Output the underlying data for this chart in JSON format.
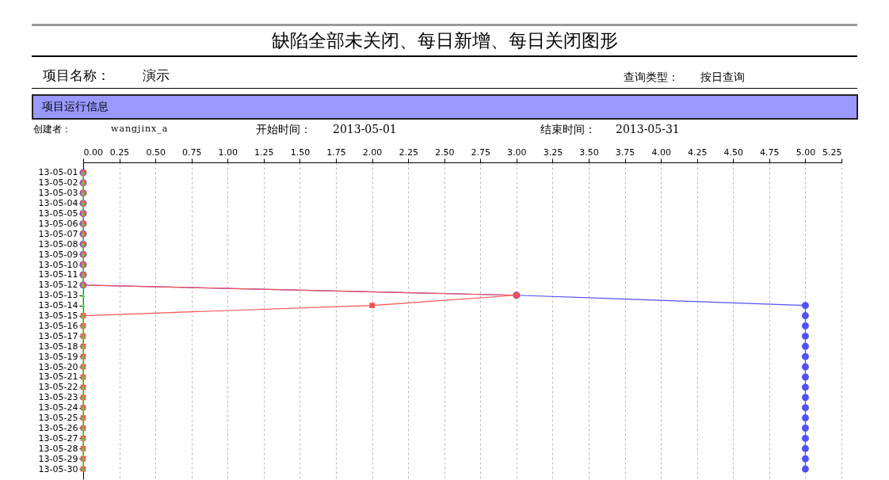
{
  "chart_data": {
    "type": "line",
    "orientation": "horizontal",
    "title": "缺陷全部未关闭、每日新增、每日关闭图形",
    "annotations": [
      "项目名称：",
      "演示",
      "查询类型：",
      "按日查询",
      "项目运行信息",
      "创建者：",
      "wangjinx_a",
      "开始时间：",
      "2013-05-01",
      "结束时间：",
      "2013-05-31"
    ],
    "categories": [
      "13-05-01",
      "13-05-02",
      "13-05-03",
      "13-05-04",
      "13-05-05",
      "13-05-06",
      "13-05-07",
      "13-05-08",
      "13-05-09",
      "13-05-10",
      "13-05-11",
      "13-05-12",
      "13-05-13",
      "13-05-14",
      "13-05-15",
      "13-05-16",
      "13-05-17",
      "13-05-18",
      "13-05-19",
      "13-05-20",
      "13-05-21",
      "13-05-22",
      "13-05-23",
      "13-05-24",
      "13-05-25",
      "13-05-26",
      "13-05-27",
      "13-05-28",
      "13-05-29",
      "13-05-30"
    ],
    "series": [
      {
        "color": "#40e040",
        "marker": "triangle",
        "values": [
          0,
          0,
          0,
          0,
          0,
          0,
          0,
          0,
          0,
          0,
          0,
          0,
          0,
          0,
          0,
          0,
          0,
          0,
          0,
          0,
          0,
          0,
          0,
          0,
          0,
          0,
          0,
          0,
          0,
          0
        ]
      },
      {
        "color": "#ff5050",
        "marker": "square",
        "values": [
          0,
          0,
          0,
          0,
          0,
          0,
          0,
          0,
          0,
          0,
          0,
          0,
          3,
          2,
          0,
          0,
          0,
          0,
          0,
          0,
          0,
          0,
          0,
          0,
          0,
          0,
          0,
          0,
          0,
          0
        ]
      },
      {
        "color": "#5050ff",
        "marker": "circle",
        "values": [
          0,
          0,
          0,
          0,
          0,
          0,
          0,
          0,
          0,
          0,
          0,
          0,
          3,
          5,
          5,
          5,
          5,
          5,
          5,
          5,
          5,
          5,
          5,
          5,
          5,
          5,
          5,
          5,
          5,
          5
        ]
      }
    ],
    "xlim": [
      0,
      5.25
    ],
    "xticks": [
      {
        "value": 0,
        "label": "0.00"
      },
      {
        "value": 0.25,
        "label": "0.25"
      },
      {
        "value": 0.5,
        "label": "0.50"
      },
      {
        "value": 0.75,
        "label": "0.75"
      },
      {
        "value": 1,
        "label": "1.00"
      },
      {
        "value": 1.25,
        "label": "1.25"
      },
      {
        "value": 1.5,
        "label": "1.50"
      },
      {
        "value": 1.75,
        "label": "1.75"
      },
      {
        "value": 2,
        "label": "2.00"
      },
      {
        "value": 2.25,
        "label": "2.25"
      },
      {
        "value": 2.5,
        "label": "2.50"
      },
      {
        "value": 2.75,
        "label": "2.75"
      },
      {
        "value": 3,
        "label": "3.00"
      },
      {
        "value": 3.25,
        "label": "3.25"
      },
      {
        "value": 3.5,
        "label": "3.50"
      },
      {
        "value": 3.75,
        "label": "3.75"
      },
      {
        "value": 4,
        "label": "4.00"
      },
      {
        "value": 4.25,
        "label": "4.25"
      },
      {
        "value": 4.5,
        "label": "4.50"
      },
      {
        "value": 4.75,
        "label": "4.75"
      },
      {
        "value": 5,
        "label": "5.00"
      },
      {
        "value": 5.25,
        "label": "5.25"
      }
    ],
    "grid": "x"
  }
}
